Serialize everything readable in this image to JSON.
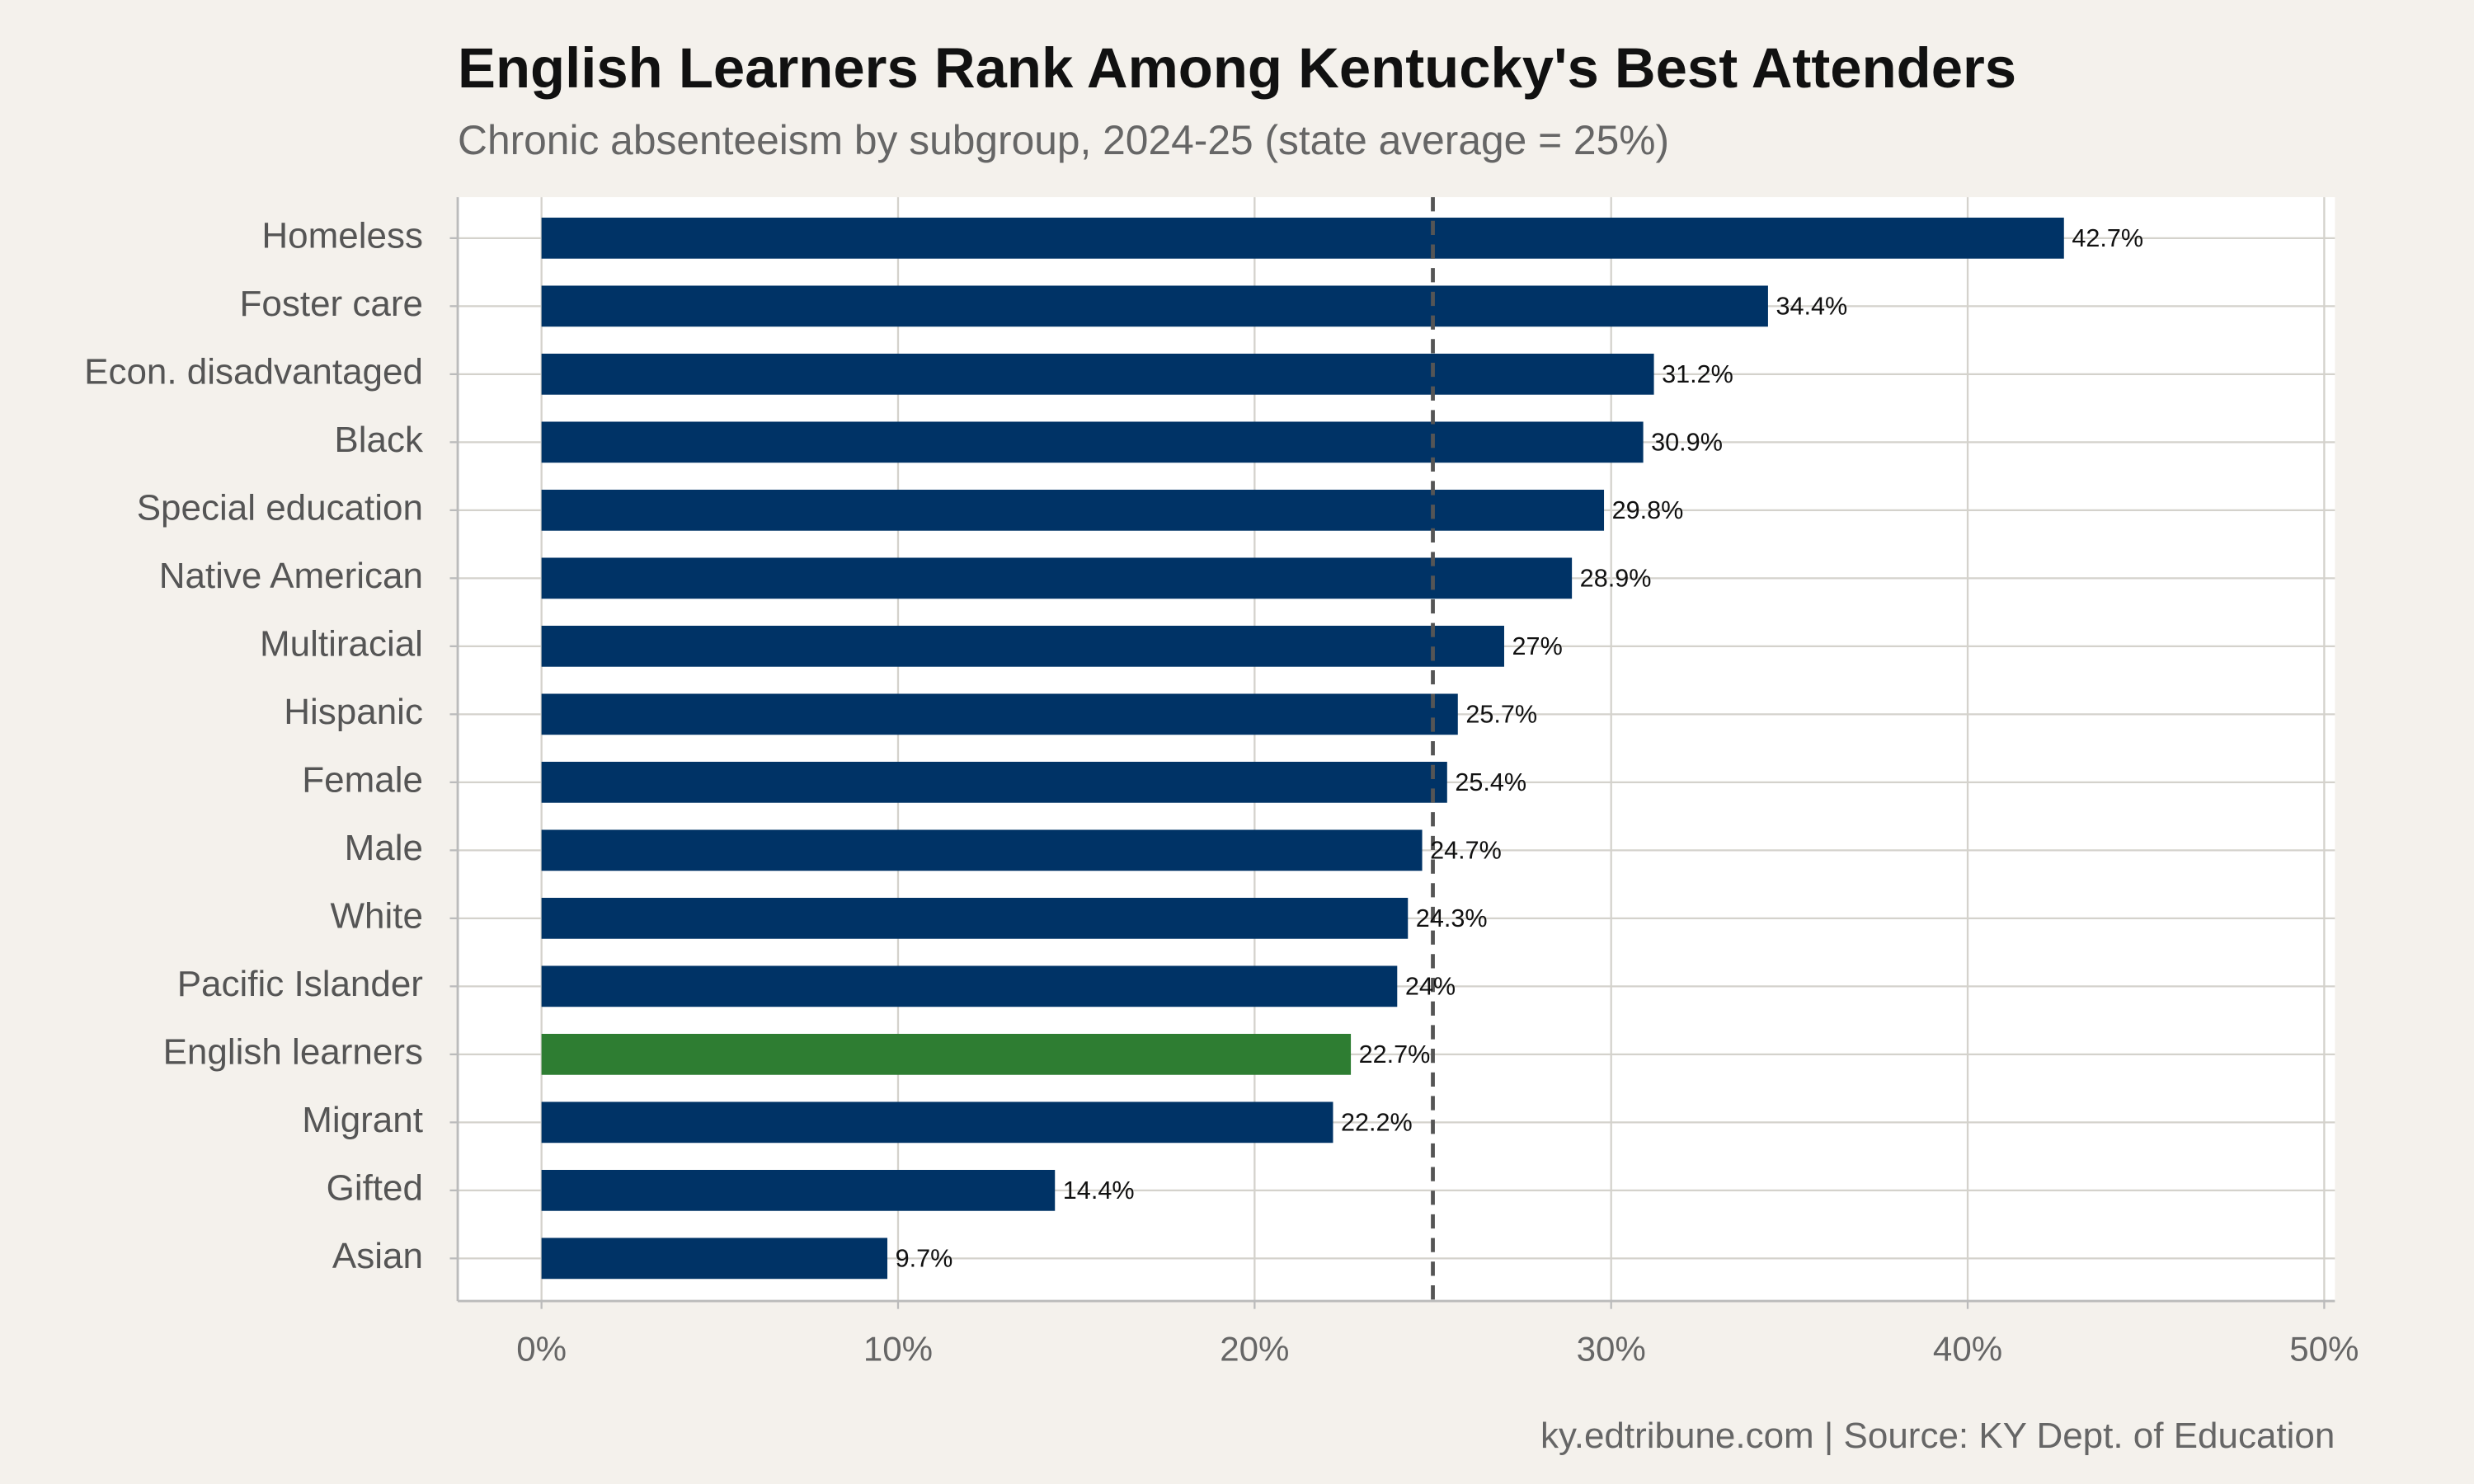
{
  "chart_data": {
    "type": "bar",
    "orientation": "horizontal",
    "title": "English Learners Rank Among Kentucky's Best Attenders",
    "subtitle": "Chronic absenteeism by subgroup, 2024-25 (state average = 25%)",
    "caption": "ky.edtribune.com | Source: KY Dept. of Education",
    "categories": [
      "Homeless",
      "Foster care",
      "Econ. disadvantaged",
      "Black",
      "Special education",
      "Native American",
      "Multiracial",
      "Hispanic",
      "Female",
      "Male",
      "White",
      "Pacific Islander",
      "English learners",
      "Migrant",
      "Gifted",
      "Asian"
    ],
    "values": [
      42.7,
      34.4,
      31.2,
      30.9,
      29.8,
      28.9,
      27,
      25.7,
      25.4,
      24.7,
      24.3,
      24,
      22.7,
      22.2,
      14.4,
      9.7
    ],
    "value_labels": [
      "42.7%",
      "34.4%",
      "31.2%",
      "30.9%",
      "29.8%",
      "28.9%",
      "27%",
      "25.7%",
      "25.4%",
      "24.7%",
      "24.3%",
      "24%",
      "22.7%",
      "22.2%",
      "14.4%",
      "9.7%"
    ],
    "colors": [
      "#003366",
      "#003366",
      "#003366",
      "#003366",
      "#003366",
      "#003366",
      "#003366",
      "#003366",
      "#003366",
      "#003366",
      "#003366",
      "#003366",
      "#2e7d32",
      "#003366",
      "#003366",
      "#003366"
    ],
    "reference_line": 25,
    "xlim": [
      -2.35,
      50.3
    ],
    "xticks": [
      {
        "value": 0,
        "label": "0%"
      },
      {
        "value": 10,
        "label": "10%"
      },
      {
        "value": 20,
        "label": "20%"
      },
      {
        "value": 30,
        "label": "30%"
      },
      {
        "value": 40,
        "label": "40%"
      },
      {
        "value": 50,
        "label": "50%"
      }
    ],
    "grid": true
  }
}
